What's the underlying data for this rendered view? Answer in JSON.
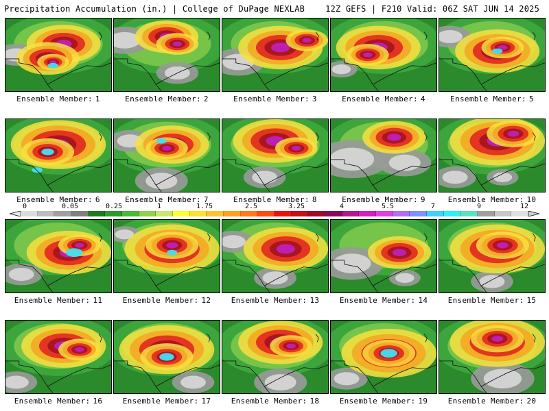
{
  "header": {
    "title": "Precipitation Accumulation (in.) | College of DuPage NEXLAB",
    "run_info": "12Z GEFS | F210 Valid: 06Z SAT JUN 14 2025"
  },
  "member_prefix": "Ensemble Member:",
  "members": [
    "1",
    "2",
    "3",
    "4",
    "5",
    "6",
    "7",
    "8",
    "9",
    "10",
    "11",
    "12",
    "13",
    "14",
    "15",
    "16",
    "17",
    "18",
    "19",
    "20"
  ],
  "legend": {
    "ticks": [
      "0",
      "0.05",
      "0.25",
      "1",
      "1.75",
      "2.5",
      "3.25",
      "4",
      "5.5",
      "7",
      "9",
      "12"
    ],
    "colors": [
      "#dcdcdc",
      "#bdbdbd",
      "#a0a0a0",
      "#808080",
      "#1f7a1f",
      "#2e9a2e",
      "#4cb83a",
      "#8fd14f",
      "#c8e86b",
      "#ffff33",
      "#ffe033",
      "#ffc233",
      "#ffa020",
      "#ff7a1a",
      "#ff4a10",
      "#ee1010",
      "#c80f1a",
      "#a00a2a",
      "#8a0a5a",
      "#b01890",
      "#d020c0",
      "#e040e0",
      "#b070f0",
      "#8090ff",
      "#40d0ff",
      "#30f0f0",
      "#60e0c0",
      "#a0a0a0",
      "#c8c8c8",
      "#e0e0e0"
    ]
  },
  "colors": {
    "green_dark": "#2b8a2b",
    "green": "#3ea83e",
    "green_light": "#7cc84a",
    "gray": "#9a9a9a",
    "gray_light": "#d8d8d8",
    "yellow": "#f8e040",
    "orange": "#f5a623",
    "red": "#e02020",
    "darkred": "#a01020",
    "magenta": "#c020c0",
    "cyan": "#40e0f0",
    "border": "#1a1a1a"
  },
  "panels": [
    {
      "id": 1,
      "hot": [
        [
          0.55,
          0.35,
          0.35
        ],
        [
          0.4,
          0.55,
          0.3
        ],
        [
          0.45,
          0.6,
          0.15
        ]
      ],
      "gray": [
        [
          0.1,
          0.5,
          0.2
        ]
      ],
      "cyan": [
        [
          0.45,
          0.65,
          0.05
        ]
      ]
    },
    {
      "id": 2,
      "hot": [
        [
          0.5,
          0.25,
          0.3
        ],
        [
          0.6,
          0.35,
          0.2
        ]
      ],
      "gray": [
        [
          0.1,
          0.3,
          0.25
        ],
        [
          0.6,
          0.75,
          0.2
        ]
      ],
      "cyan": []
    },
    {
      "id": 3,
      "hot": [
        [
          0.55,
          0.4,
          0.4
        ],
        [
          0.8,
          0.3,
          0.2
        ]
      ],
      "gray": [
        [
          0.15,
          0.6,
          0.25
        ]
      ],
      "cyan": []
    },
    {
      "id": 4,
      "hot": [
        [
          0.45,
          0.4,
          0.4
        ],
        [
          0.35,
          0.5,
          0.2
        ]
      ],
      "gray": [
        [
          0.1,
          0.7,
          0.15
        ]
      ],
      "cyan": []
    },
    {
      "id": 5,
      "hot": [
        [
          0.55,
          0.45,
          0.4
        ],
        [
          0.6,
          0.4,
          0.2
        ]
      ],
      "gray": [
        [
          0.1,
          0.25,
          0.2
        ]
      ],
      "cyan": [
        [
          0.55,
          0.45,
          0.05
        ]
      ]
    },
    {
      "id": 6,
      "hot": [
        [
          0.5,
          0.35,
          0.45
        ],
        [
          0.4,
          0.45,
          0.25
        ]
      ],
      "gray": [],
      "cyan": [
        [
          0.4,
          0.45,
          0.06
        ],
        [
          0.3,
          0.7,
          0.05
        ]
      ]
    },
    {
      "id": 7,
      "hot": [
        [
          0.55,
          0.35,
          0.35
        ],
        [
          0.5,
          0.4,
          0.2
        ]
      ],
      "gray": [
        [
          0.15,
          0.3,
          0.2
        ],
        [
          0.45,
          0.85,
          0.25
        ]
      ],
      "cyan": [
        [
          0.45,
          0.3,
          0.05
        ]
      ]
    },
    {
      "id": 8,
      "hot": [
        [
          0.5,
          0.3,
          0.4
        ],
        [
          0.7,
          0.4,
          0.2
        ]
      ],
      "gray": [
        [
          0.4,
          0.8,
          0.2
        ]
      ],
      "cyan": []
    },
    {
      "id": 9,
      "hot": [
        [
          0.6,
          0.25,
          0.3
        ]
      ],
      "gray": [
        [
          0.2,
          0.55,
          0.35
        ],
        [
          0.7,
          0.6,
          0.25
        ]
      ],
      "cyan": []
    },
    {
      "id": 10,
      "hot": [
        [
          0.55,
          0.3,
          0.45
        ],
        [
          0.7,
          0.2,
          0.25
        ]
      ],
      "gray": [
        [
          0.15,
          0.8,
          0.2
        ],
        [
          0.6,
          0.8,
          0.15
        ]
      ],
      "cyan": []
    },
    {
      "id": 11,
      "hot": [
        [
          0.6,
          0.45,
          0.4
        ],
        [
          0.7,
          0.35,
          0.2
        ]
      ],
      "gray": [
        [
          0.15,
          0.75,
          0.2
        ]
      ],
      "cyan": [
        [
          0.65,
          0.45,
          0.08
        ]
      ]
    },
    {
      "id": 12,
      "hot": [
        [
          0.55,
          0.4,
          0.45
        ],
        [
          0.55,
          0.35,
          0.25
        ]
      ],
      "gray": [
        [
          0.1,
          0.2,
          0.15
        ]
      ],
      "cyan": [
        [
          0.55,
          0.45,
          0.05
        ]
      ]
    },
    {
      "id": 13,
      "hot": [
        [
          0.6,
          0.4,
          0.4
        ]
      ],
      "gray": [
        [
          0.1,
          0.3,
          0.2
        ],
        [
          0.5,
          0.8,
          0.2
        ]
      ],
      "cyan": []
    },
    {
      "id": 14,
      "hot": [
        [
          0.65,
          0.45,
          0.3
        ]
      ],
      "gray": [
        [
          0.2,
          0.6,
          0.3
        ],
        [
          0.7,
          0.8,
          0.15
        ]
      ],
      "cyan": []
    },
    {
      "id": 15,
      "hot": [
        [
          0.55,
          0.4,
          0.45
        ],
        [
          0.6,
          0.35,
          0.25
        ]
      ],
      "gray": [
        [
          0.5,
          0.85,
          0.2
        ]
      ],
      "cyan": []
    },
    {
      "id": 16,
      "hot": [
        [
          0.55,
          0.35,
          0.4
        ],
        [
          0.7,
          0.4,
          0.2
        ]
      ],
      "gray": [
        [
          0.1,
          0.85,
          0.2
        ]
      ],
      "cyan": []
    },
    {
      "id": 17,
      "hot": [
        [
          0.5,
          0.4,
          0.45
        ],
        [
          0.5,
          0.5,
          0.25
        ]
      ],
      "gray": [
        [
          0.75,
          0.85,
          0.2
        ]
      ],
      "cyan": [
        [
          0.5,
          0.5,
          0.07
        ]
      ]
    },
    {
      "id": 18,
      "hot": [
        [
          0.55,
          0.3,
          0.4
        ],
        [
          0.65,
          0.35,
          0.2
        ]
      ],
      "gray": [
        [
          0.55,
          0.85,
          0.25
        ]
      ],
      "cyan": []
    },
    {
      "id": 19,
      "hot": [
        [
          0.55,
          0.45,
          0.45
        ],
        [
          0.55,
          0.45,
          0.25
        ]
      ],
      "gray": [
        [
          0.15,
          0.8,
          0.2
        ]
      ],
      "cyan": [
        [
          0.55,
          0.45,
          0.08
        ]
      ]
    },
    {
      "id": 20,
      "hot": [
        [
          0.55,
          0.3,
          0.45
        ],
        [
          0.55,
          0.25,
          0.25
        ]
      ],
      "gray": [
        [
          0.6,
          0.8,
          0.3
        ]
      ],
      "cyan": []
    }
  ]
}
